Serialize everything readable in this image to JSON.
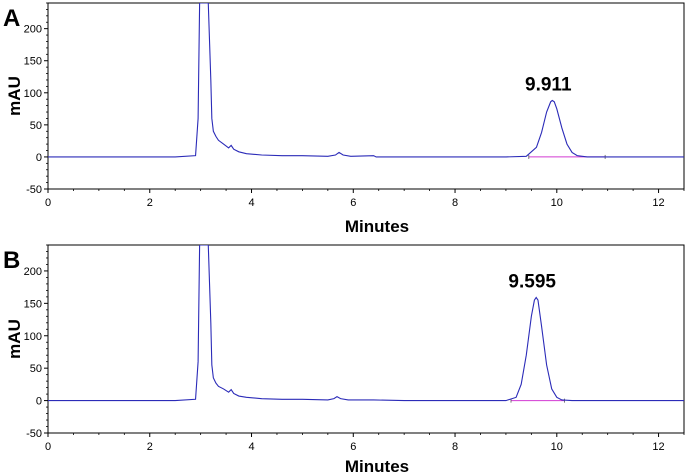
{
  "chart_data": [
    {
      "type": "line",
      "panel_label": "A",
      "xlabel": "Minutes",
      "ylabel": "mAU",
      "xlim": [
        0,
        12.5
      ],
      "ylim": [
        -50,
        240
      ],
      "x_ticks": [
        0,
        2,
        4,
        6,
        8,
        10,
        12
      ],
      "y_ticks": [
        -50,
        0,
        50,
        100,
        150,
        200
      ],
      "peak_annotation": {
        "text": "9.911",
        "x": 9.911,
        "y": 88
      },
      "baseline_segment": {
        "x": [
          9.45,
          10.95
        ],
        "y": 0
      },
      "series": [
        {
          "color": "#2b2bb8",
          "x": [
            0,
            2.5,
            2.9,
            2.95,
            2.98,
            3.0,
            3.05,
            3.15,
            3.2,
            3.22,
            3.25,
            3.3,
            3.35,
            3.45,
            3.55,
            3.6,
            3.65,
            3.75,
            3.9,
            4.2,
            4.6,
            5.0,
            5.5,
            5.65,
            5.72,
            5.8,
            5.95,
            6.4,
            6.45,
            7.0,
            8.0,
            9.0,
            9.4,
            9.6,
            9.7,
            9.8,
            9.88,
            9.911,
            9.95,
            10.0,
            10.1,
            10.2,
            10.3,
            10.4,
            10.6,
            11.0,
            12.0,
            12.5
          ],
          "y": [
            0,
            0,
            2,
            60,
            240,
            240,
            240,
            240,
            120,
            60,
            40,
            32,
            26,
            20,
            14,
            18,
            12,
            8,
            5,
            3,
            2,
            2,
            1,
            3,
            7,
            3,
            1,
            2,
            0,
            0,
            0,
            0,
            1,
            15,
            38,
            70,
            86,
            88,
            86,
            75,
            45,
            20,
            7,
            2,
            0,
            0,
            0,
            0
          ]
        }
      ]
    },
    {
      "type": "line",
      "panel_label": "B",
      "xlabel": "Minutes",
      "ylabel": "mAU",
      "xlim": [
        0,
        12.5
      ],
      "ylim": [
        -50,
        240
      ],
      "x_ticks": [
        0,
        2,
        4,
        6,
        8,
        10,
        12
      ],
      "y_ticks": [
        -50,
        0,
        50,
        100,
        150,
        200
      ],
      "peak_annotation": {
        "text": "9.595",
        "x": 9.595,
        "y": 159
      },
      "baseline_segment": {
        "x": [
          9.1,
          10.15
        ],
        "y": 0
      },
      "series": [
        {
          "color": "#2b2bb8",
          "x": [
            0,
            2.5,
            2.9,
            2.95,
            2.98,
            3.0,
            3.05,
            3.15,
            3.2,
            3.22,
            3.25,
            3.3,
            3.35,
            3.45,
            3.55,
            3.6,
            3.65,
            3.75,
            3.9,
            4.2,
            4.6,
            5.0,
            5.5,
            5.62,
            5.68,
            5.75,
            5.9,
            6.4,
            7.0,
            8.0,
            9.0,
            9.2,
            9.3,
            9.4,
            9.5,
            9.56,
            9.595,
            9.63,
            9.7,
            9.8,
            9.9,
            10.0,
            10.1,
            10.3,
            11.0,
            12.0,
            12.5
          ],
          "y": [
            0,
            0,
            2,
            60,
            240,
            240,
            240,
            240,
            120,
            55,
            35,
            27,
            22,
            18,
            13,
            17,
            11,
            7,
            5,
            3,
            2,
            2,
            1,
            3,
            6,
            3,
            1,
            1,
            0,
            0,
            0,
            5,
            25,
            70,
            130,
            155,
            159,
            155,
            115,
            55,
            18,
            5,
            1,
            0,
            0,
            0,
            0
          ]
        }
      ]
    }
  ]
}
